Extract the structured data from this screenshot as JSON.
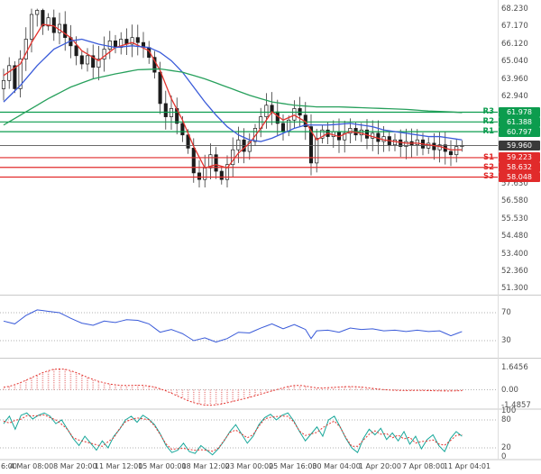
{
  "colors": {
    "resistance": "#0c9c4e",
    "support": "#e12b2b",
    "price_badge": "#3a3a3a",
    "candle": "#1c1c1c",
    "ma_fast": "#e3342f",
    "ma_mid": "#3a5bd9",
    "ma_slow": "#27a05c",
    "rsi_line": "#3a5bd9",
    "macd_line": "#e3342f",
    "macd_hist": "#e98989",
    "stoch_k": "#18a79a",
    "stoch_d": "#e3342f",
    "axis_text": "#4d4d4d",
    "guide": "#999999",
    "separator": "#c9c9c9"
  },
  "chart_data": {
    "type": "candlestick",
    "title": "",
    "x_axis": {
      "tick_labels": [
        "6:00",
        "4 Mar 08:00",
        "8 Mar 20:00",
        "11 Mar 12:00",
        "15 Mar 00:00",
        "18 Mar 12:00",
        "23 Mar 00:00",
        "25 Mar 16:00",
        "30 Mar 04:00",
        "1 Apr 20:00",
        "7 Apr 08:00",
        "11 Apr 04:01"
      ]
    },
    "y_axis": {
      "tick_labels": [
        "68.230",
        "67.170",
        "66.120",
        "65.040",
        "63.960",
        "62.940",
        "57.630",
        "56.580",
        "55.530",
        "54.480",
        "53.400",
        "52.360",
        "51.300"
      ],
      "range": [
        51.0,
        68.7
      ]
    },
    "levels": [
      {
        "name": "R3",
        "text": "61.978",
        "value": 61.978,
        "kind": "resistance"
      },
      {
        "name": "R2",
        "text": "61.388",
        "value": 61.388,
        "kind": "resistance"
      },
      {
        "name": "R1",
        "text": "60.797",
        "value": 60.797,
        "kind": "resistance"
      },
      {
        "name": "",
        "text": "59.960",
        "value": 59.96,
        "kind": "price"
      },
      {
        "name": "S1",
        "text": "59.223",
        "value": 59.223,
        "kind": "support"
      },
      {
        "name": "S2",
        "text": "58.632",
        "value": 58.632,
        "kind": "support"
      },
      {
        "name": "S3",
        "text": "58.048",
        "value": 58.048,
        "kind": "support"
      }
    ],
    "candles": {
      "closes": [
        63.9,
        64.8,
        63.4,
        65.2,
        66.4,
        67.9,
        68.15,
        67.2,
        67.7,
        66.8,
        67.3,
        66.5,
        66.0,
        65.4,
        64.9,
        65.4,
        64.7,
        65.2,
        65.8,
        66.3,
        65.9,
        66.4,
        66.1,
        66.5,
        66.2,
        65.9,
        65.3,
        64.4,
        62.5,
        61.7,
        62.2,
        61.3,
        60.6,
        59.8,
        58.3,
        57.9,
        58.6,
        59.4,
        58.4,
        57.9,
        58.8,
        59.7,
        60.3,
        59.6,
        60.2,
        61.0,
        61.7,
        62.4,
        62.0,
        61.3,
        60.8,
        61.5,
        62.2,
        61.8,
        61.1,
        58.9,
        60.4,
        60.9,
        60.5,
        60.8,
        60.3,
        60.7,
        61.0,
        60.6,
        60.9,
        60.4,
        60.7,
        60.2,
        60.5,
        60.0,
        60.3,
        59.9,
        60.2,
        60.0,
        60.3,
        59.8,
        60.1,
        59.7,
        60.0,
        59.6,
        59.4,
        59.9,
        59.96
      ],
      "high_cap": 68.25,
      "low_cap": 57.42,
      "last_price": 59.96
    },
    "overlays": [
      {
        "name": "ma-fast",
        "color": "#e3342f",
        "keypoints": [
          [
            0,
            64.2
          ],
          [
            3,
            64.9
          ],
          [
            5,
            66.2
          ],
          [
            7,
            67.3
          ],
          [
            9,
            67.2
          ],
          [
            12,
            66.5
          ],
          [
            14,
            65.7
          ],
          [
            17,
            65.1
          ],
          [
            20,
            65.9
          ],
          [
            23,
            66.2
          ],
          [
            26,
            65.7
          ],
          [
            28,
            64.5
          ],
          [
            30,
            62.8
          ],
          [
            32,
            61.5
          ],
          [
            34,
            59.9
          ],
          [
            36,
            58.6
          ],
          [
            38,
            58.8
          ],
          [
            40,
            58.6
          ],
          [
            42,
            59.5
          ],
          [
            44,
            60.1
          ],
          [
            46,
            61.0
          ],
          [
            48,
            62.0
          ],
          [
            50,
            61.5
          ],
          [
            52,
            61.8
          ],
          [
            54,
            61.4
          ],
          [
            56,
            60.3
          ],
          [
            58,
            60.7
          ],
          [
            60,
            60.5
          ],
          [
            62,
            60.8
          ],
          [
            64,
            60.7
          ],
          [
            66,
            60.5
          ],
          [
            68,
            60.3
          ],
          [
            70,
            60.2
          ],
          [
            72,
            60.1
          ],
          [
            74,
            60.1
          ],
          [
            76,
            60.0
          ],
          [
            78,
            59.9
          ],
          [
            80,
            59.7
          ],
          [
            82,
            59.7
          ]
        ]
      },
      {
        "name": "ma-mid",
        "color": "#3a5bd9",
        "keypoints": [
          [
            0,
            62.6
          ],
          [
            3,
            63.6
          ],
          [
            6,
            64.8
          ],
          [
            9,
            65.8
          ],
          [
            12,
            66.3
          ],
          [
            14,
            66.4
          ],
          [
            17,
            66.1
          ],
          [
            20,
            65.9
          ],
          [
            23,
            66.0
          ],
          [
            26,
            65.9
          ],
          [
            28,
            65.6
          ],
          [
            30,
            65.1
          ],
          [
            32,
            64.4
          ],
          [
            34,
            63.5
          ],
          [
            36,
            62.6
          ],
          [
            38,
            61.8
          ],
          [
            40,
            61.1
          ],
          [
            42,
            60.6
          ],
          [
            44,
            60.3
          ],
          [
            46,
            60.2
          ],
          [
            48,
            60.4
          ],
          [
            50,
            60.7
          ],
          [
            52,
            61.0
          ],
          [
            54,
            61.2
          ],
          [
            58,
            61.2
          ],
          [
            62,
            61.3
          ],
          [
            64,
            61.2
          ],
          [
            66,
            61.1
          ],
          [
            68,
            60.9
          ],
          [
            70,
            60.8
          ],
          [
            72,
            60.7
          ],
          [
            74,
            60.6
          ],
          [
            76,
            60.5
          ],
          [
            78,
            60.5
          ],
          [
            80,
            60.4
          ],
          [
            82,
            60.3
          ]
        ]
      },
      {
        "name": "ma-slow",
        "color": "#27a05c",
        "keypoints": [
          [
            0,
            61.2
          ],
          [
            4,
            62.0
          ],
          [
            8,
            62.8
          ],
          [
            12,
            63.5
          ],
          [
            16,
            64.0
          ],
          [
            20,
            64.3
          ],
          [
            24,
            64.55
          ],
          [
            28,
            64.6
          ],
          [
            32,
            64.4
          ],
          [
            36,
            64.0
          ],
          [
            40,
            63.5
          ],
          [
            44,
            63.0
          ],
          [
            48,
            62.6
          ],
          [
            52,
            62.4
          ],
          [
            56,
            62.3
          ],
          [
            60,
            62.3
          ],
          [
            64,
            62.25
          ],
          [
            68,
            62.2
          ],
          [
            72,
            62.15
          ],
          [
            76,
            62.05
          ],
          [
            80,
            62.0
          ],
          [
            82,
            61.95
          ]
        ]
      }
    ],
    "panels": [
      {
        "name": "rsi",
        "type": "line",
        "guides": [
          {
            "value": 70,
            "text": "70"
          },
          {
            "value": 30,
            "text": "30"
          }
        ],
        "keypoints": [
          [
            0,
            58
          ],
          [
            2,
            54
          ],
          [
            4,
            66
          ],
          [
            6,
            74
          ],
          [
            8,
            72
          ],
          [
            10,
            70
          ],
          [
            12,
            62
          ],
          [
            14,
            55
          ],
          [
            16,
            52
          ],
          [
            18,
            58
          ],
          [
            20,
            56
          ],
          [
            22,
            60
          ],
          [
            24,
            59
          ],
          [
            26,
            54
          ],
          [
            28,
            42
          ],
          [
            30,
            46
          ],
          [
            32,
            40
          ],
          [
            34,
            30
          ],
          [
            36,
            34
          ],
          [
            38,
            28
          ],
          [
            40,
            33
          ],
          [
            42,
            42
          ],
          [
            44,
            41
          ],
          [
            46,
            48
          ],
          [
            48,
            54
          ],
          [
            50,
            47
          ],
          [
            52,
            53
          ],
          [
            54,
            46
          ],
          [
            55,
            33
          ],
          [
            56,
            44
          ],
          [
            58,
            45
          ],
          [
            60,
            42
          ],
          [
            62,
            48
          ],
          [
            64,
            46
          ],
          [
            66,
            47
          ],
          [
            68,
            44
          ],
          [
            70,
            45
          ],
          [
            72,
            43
          ],
          [
            74,
            45
          ],
          [
            76,
            43
          ],
          [
            78,
            44
          ],
          [
            80,
            37
          ],
          [
            82,
            43
          ]
        ]
      },
      {
        "name": "macd",
        "type": "histogram_line",
        "labels": [
          {
            "value": 1.6456,
            "text": "1.6456"
          },
          {
            "value": 0,
            "text": "0.00"
          },
          {
            "value": -1.4857,
            "text": "-1.4857"
          }
        ],
        "keypoints": [
          [
            0,
            0.15
          ],
          [
            2,
            0.35
          ],
          [
            4,
            0.7
          ],
          [
            6,
            1.1
          ],
          [
            8,
            1.45
          ],
          [
            10,
            1.6
          ],
          [
            12,
            1.45
          ],
          [
            14,
            1.1
          ],
          [
            16,
            0.75
          ],
          [
            18,
            0.5
          ],
          [
            20,
            0.35
          ],
          [
            22,
            0.3
          ],
          [
            24,
            0.35
          ],
          [
            26,
            0.3
          ],
          [
            28,
            0.1
          ],
          [
            30,
            -0.3
          ],
          [
            32,
            -0.8
          ],
          [
            34,
            -1.2
          ],
          [
            36,
            -1.45
          ],
          [
            38,
            -1.4
          ],
          [
            40,
            -1.2
          ],
          [
            42,
            -0.95
          ],
          [
            44,
            -0.7
          ],
          [
            46,
            -0.4
          ],
          [
            48,
            -0.1
          ],
          [
            50,
            0.15
          ],
          [
            52,
            0.35
          ],
          [
            54,
            0.3
          ],
          [
            56,
            0.1
          ],
          [
            58,
            0.15
          ],
          [
            60,
            0.2
          ],
          [
            62,
            0.25
          ],
          [
            64,
            0.2
          ],
          [
            66,
            0.1
          ],
          [
            68,
            0.0
          ],
          [
            70,
            -0.05
          ],
          [
            72,
            -0.08
          ],
          [
            74,
            -0.05
          ],
          [
            76,
            -0.08
          ],
          [
            78,
            -0.1
          ],
          [
            80,
            -0.12
          ],
          [
            82,
            -0.08
          ]
        ]
      },
      {
        "name": "stoch",
        "type": "line2",
        "guides": [
          {
            "value": 100,
            "text": "100",
            "line": false
          },
          {
            "value": 80,
            "text": "80",
            "line": true
          },
          {
            "value": 20,
            "text": "20",
            "line": true
          },
          {
            "value": 0,
            "text": "0",
            "line": false
          }
        ],
        "values": [
          72,
          88,
          60,
          90,
          95,
          82,
          90,
          95,
          88,
          72,
          80,
          60,
          40,
          25,
          45,
          30,
          15,
          35,
          20,
          45,
          60,
          80,
          88,
          75,
          90,
          82,
          70,
          50,
          25,
          10,
          15,
          30,
          12,
          8,
          25,
          15,
          5,
          18,
          35,
          55,
          70,
          50,
          30,
          45,
          70,
          85,
          92,
          80,
          90,
          95,
          78,
          55,
          35,
          50,
          65,
          45,
          80,
          88,
          65,
          40,
          20,
          10,
          40,
          60,
          48,
          62,
          38,
          52,
          35,
          55,
          28,
          45,
          18,
          38,
          48,
          25,
          12,
          40,
          55,
          45
        ]
      }
    ]
  }
}
